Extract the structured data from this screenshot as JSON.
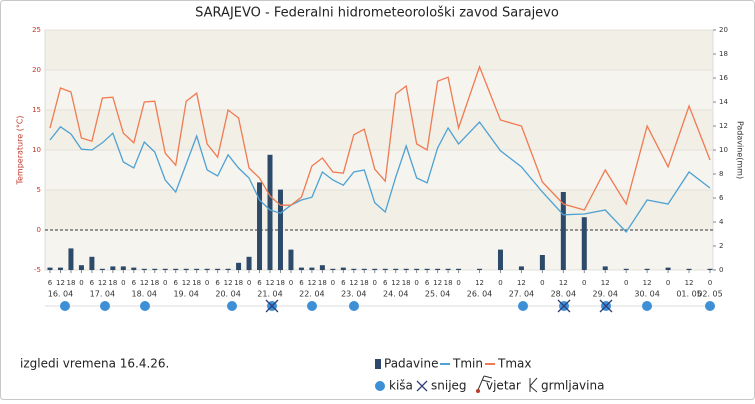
{
  "chart_data": {
    "type": "combo",
    "title": "SARAJEVO - Federalni hidrometeorološki zavod Sarajevo",
    "subtitle": "izgledi vremena 16.4.26.",
    "y_label": "Temperature (°C)",
    "y2_label": "Padavine(mm)",
    "categories": [
      "6",
      "12",
      "18",
      "0",
      "6",
      "12",
      "18",
      "0",
      "6",
      "12",
      "18",
      "0",
      "6",
      "12",
      "18",
      "0",
      "6",
      "12",
      "18",
      "0",
      "6",
      "12",
      "18",
      "0",
      "6",
      "12",
      "18",
      "0",
      "6",
      "12",
      "18",
      "0",
      "6",
      "12",
      "18",
      "0",
      "6",
      "12",
      "18",
      "0",
      "12",
      "0",
      "12",
      "0",
      "12",
      "0",
      "12",
      "0",
      "12",
      "0",
      "12",
      "0"
    ],
    "dates": [
      null,
      "16. 04",
      null,
      null,
      null,
      "17. 04",
      null,
      null,
      null,
      "18. 04",
      null,
      null,
      null,
      "19. 04",
      null,
      null,
      null,
      "20. 04",
      null,
      null,
      null,
      "21. 04",
      null,
      null,
      null,
      "22. 04",
      null,
      null,
      null,
      "23. 04",
      null,
      null,
      null,
      "24. 04",
      null,
      null,
      null,
      "25. 04",
      null,
      null,
      "26. 04",
      null,
      "27. 04",
      null,
      "28. 04",
      null,
      "29. 04",
      null,
      "30. 04",
      null,
      "01. 05",
      "02. 05"
    ],
    "series": [
      {
        "name": "Padavine",
        "type": "bar",
        "axis": "y2",
        "color": "#2e4a6b",
        "values": [
          0.2,
          0.2,
          1.8,
          0.4,
          1.1,
          0.1,
          0.3,
          0.3,
          0.2,
          0.1,
          0.1,
          0.1,
          0.1,
          0.1,
          0.1,
          0.1,
          0.1,
          0.1,
          0.6,
          1.1,
          7.3,
          9.6,
          6.7,
          1.7,
          0.2,
          0.2,
          0.4,
          0.1,
          0.2,
          0.1,
          0.1,
          0.1,
          0.1,
          0.1,
          0.1,
          0.1,
          0.1,
          0.1,
          0.1,
          0.1,
          0.1,
          1.7,
          0.3,
          1.25,
          6.5,
          4.4,
          0.3,
          0.1,
          0.1,
          0.2,
          0.1,
          0.1
        ]
      },
      {
        "name": "Tmin",
        "type": "line",
        "color": "#4ea1d3",
        "values": [
          11.25,
          12.9,
          12,
          10.1,
          10,
          10.9,
          12.1,
          8.5,
          7.75,
          11,
          9.75,
          6.25,
          4.75,
          8.25,
          11.75,
          7.5,
          6.75,
          9.4,
          7.75,
          6.5,
          3.75,
          2.5,
          2.1,
          3.1,
          3.75,
          4.1,
          7.25,
          6.25,
          5.6,
          7.25,
          7.5,
          3.4,
          2.25,
          6.6,
          10.5,
          6.5,
          5.9,
          10.25,
          12.75,
          10.75,
          13.5,
          9.9,
          7.9,
          4.75,
          1.9,
          2,
          2.5,
          -0.25,
          3.75,
          3.25,
          7.25,
          5.25
        ]
      },
      {
        "name": "Tmax",
        "type": "line",
        "color": "#f07a52",
        "values": [
          12.75,
          17.75,
          17.25,
          11.5,
          11.1,
          16.5,
          16.6,
          12.1,
          10.9,
          16,
          16.1,
          9.6,
          8.1,
          16.1,
          17.1,
          10.75,
          9.1,
          15,
          14,
          7.75,
          6.5,
          4.25,
          3.1,
          3.1,
          4.1,
          8,
          9,
          7.25,
          7.1,
          11.9,
          12.6,
          7.6,
          6.1,
          17,
          18,
          10.75,
          10,
          18.6,
          19.1,
          12.75,
          20.4,
          13.75,
          13,
          6,
          3.25,
          2.5,
          7.5,
          3.25,
          13,
          7.9,
          15.5,
          8.75
        ]
      }
    ],
    "ylim": [
      -5,
      25
    ],
    "yticks": [
      -5,
      0,
      5,
      10,
      15,
      20,
      25
    ],
    "y2lim": [
      0,
      20
    ],
    "y2ticks": [
      0,
      2,
      4,
      6,
      8,
      10,
      12,
      14,
      16,
      18,
      20
    ],
    "symbols": [
      "kiša",
      "snijeg",
      "vjetar",
      "grmljavina"
    ]
  }
}
